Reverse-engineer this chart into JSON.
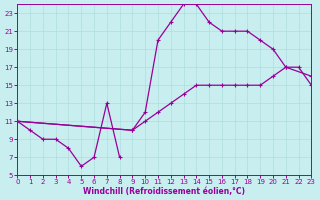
{
  "bg_color": "#c8eef0",
  "grid_color": "#b0dde0",
  "line_color": "#990099",
  "xlabel": "Windchill (Refroidissement éolien,°C)",
  "xlim": [
    0,
    23
  ],
  "ylim": [
    5,
    24
  ],
  "xticks": [
    0,
    1,
    2,
    3,
    4,
    5,
    6,
    7,
    8,
    9,
    10,
    11,
    12,
    13,
    14,
    15,
    16,
    17,
    18,
    19,
    20,
    21,
    22,
    23
  ],
  "yticks": [
    5,
    7,
    9,
    11,
    13,
    15,
    17,
    19,
    21,
    23
  ],
  "series": [
    {
      "x": [
        0,
        1,
        2,
        3,
        4,
        5,
        6,
        7,
        8
      ],
      "y": [
        11,
        10,
        9,
        9,
        8,
        6,
        7,
        13,
        7
      ]
    },
    {
      "x": [
        0,
        9,
        10,
        11,
        12,
        13,
        14,
        15,
        16,
        17,
        18,
        19,
        20,
        21,
        23
      ],
      "y": [
        11,
        10,
        12,
        20,
        22,
        24,
        24,
        22,
        21,
        21,
        21,
        20,
        19,
        17,
        16
      ]
    },
    {
      "x": [
        0,
        9,
        10,
        11,
        12,
        13,
        14,
        15,
        16,
        17,
        18,
        19,
        20,
        21,
        22,
        23
      ],
      "y": [
        11,
        10,
        11,
        12,
        13,
        14,
        15,
        15,
        15,
        15,
        15,
        15,
        16,
        17,
        17,
        15
      ]
    }
  ]
}
